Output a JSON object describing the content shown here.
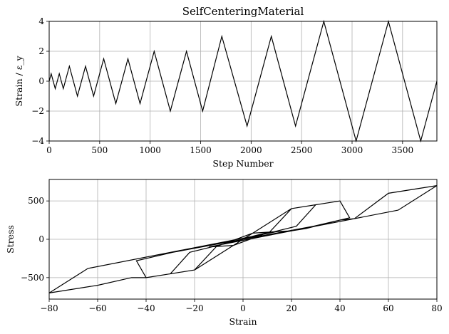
{
  "chart_data": [
    {
      "type": "line",
      "title": "SelfCenteringMaterial",
      "xlabel": "Step Number",
      "ylabel": "Strain / ε_y",
      "xlim": [
        0,
        3840
      ],
      "ylim": [
        -4,
        4
      ],
      "xticks": [
        0,
        500,
        1000,
        1500,
        2000,
        2500,
        3000,
        3500
      ],
      "xtick_labels": [
        "0",
        "500",
        "1000",
        "1500",
        "2000",
        "2500",
        "3000",
        "3500"
      ],
      "yticks": [
        -4,
        -2,
        0,
        2,
        4
      ],
      "ytick_labels": [
        "−4",
        "−2",
        "0",
        "2",
        "4"
      ],
      "grid": true,
      "series": [
        {
          "x": [
            0,
            20,
            60,
            100,
            140,
            200,
            280,
            360,
            440,
            540,
            660,
            780,
            900,
            1040,
            1200,
            1360,
            1520,
            1710,
            1960,
            2200,
            2440,
            2720,
            3040,
            3360,
            3680,
            3840
          ],
          "values": [
            0,
            0.5,
            -0.5,
            0.5,
            -0.5,
            1,
            -1,
            1,
            -1,
            1.5,
            -1.5,
            1.5,
            -1.5,
            2,
            -2,
            2,
            -2,
            3,
            -3,
            3,
            -3,
            4,
            -4,
            4,
            -4,
            0
          ]
        }
      ]
    },
    {
      "type": "line",
      "title": "",
      "xlabel": "Strain",
      "ylabel": "Stress",
      "xlim": [
        -80,
        80
      ],
      "ylim": [
        -780,
        780
      ],
      "xticks": [
        -80,
        -60,
        -40,
        -20,
        0,
        20,
        40,
        60,
        80
      ],
      "xtick_labels": [
        "−80",
        "−60",
        "−40",
        "−20",
        "0",
        "20",
        "40",
        "60",
        "80"
      ],
      "yticks": [
        -500,
        0,
        500
      ],
      "ytick_labels": [
        "−500",
        "0",
        "500"
      ],
      "grid": true,
      "series": [
        {
          "x": [
            0,
            4,
            11,
            20,
            26,
            40,
            46,
            60,
            80,
            64,
            -14,
            -4,
            11,
            20,
            -20,
            -4,
            20,
            30,
            22,
            -22,
            -30,
            -20,
            -40,
            -46,
            -60,
            -80,
            -64,
            14,
            4,
            -11,
            -20,
            20,
            40,
            44,
            29,
            -29,
            -44,
            -40,
            -20,
            0
          ],
          "values": [
            0,
            40,
            95,
            110,
            140,
            250,
            270,
            600,
            700,
            380,
            -100,
            -80,
            95,
            400,
            -400,
            -80,
            400,
            450,
            170,
            -170,
            -450,
            -400,
            -500,
            -500,
            -600,
            -700,
            -380,
            100,
            80,
            -95,
            -400,
            400,
            500,
            280,
            170,
            -170,
            -280,
            -500,
            -400,
            0
          ]
        }
      ]
    }
  ]
}
